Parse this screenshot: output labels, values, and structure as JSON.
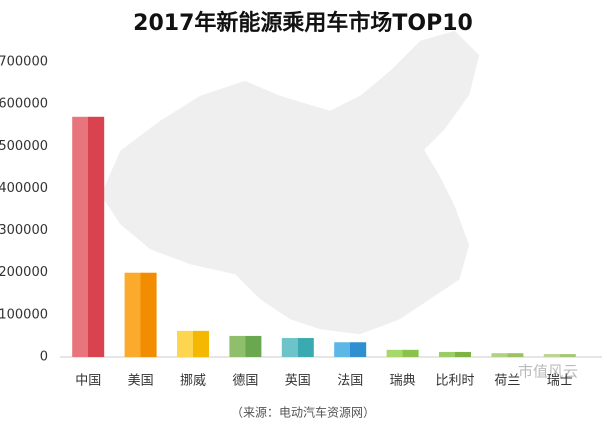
{
  "chart_data": {
    "type": "bar",
    "title": "2017年新能源乘用车市场TOP10",
    "categories": [
      "中国",
      "美国",
      "挪威",
      "德国",
      "英国",
      "法国",
      "瑞典",
      "比利时",
      "荷兰",
      "瑞士"
    ],
    "values": [
      570000,
      200000,
      62000,
      50000,
      45000,
      35000,
      17000,
      12000,
      9000,
      7000
    ],
    "colors": [
      [
        "#e8757d",
        "#d9434f"
      ],
      [
        "#fbab2c",
        "#f28c00"
      ],
      [
        "#fdd54f",
        "#f4b800"
      ],
      [
        "#8fbf6a",
        "#6aa84f"
      ],
      [
        "#6cc4ca",
        "#3aaab1"
      ],
      [
        "#5cb6e6",
        "#2e8fd1"
      ],
      [
        "#a8d86a",
        "#8bc34a"
      ],
      [
        "#9ccc65",
        "#7cb342"
      ],
      [
        "#b0d17f",
        "#9bc163"
      ],
      [
        "#bcd595",
        "#a6c77a"
      ]
    ],
    "ylim": [
      0,
      700000
    ],
    "yticks": [
      0,
      100000,
      200000,
      300000,
      400000,
      500000,
      600000,
      700000
    ],
    "grid": false,
    "source": "（来源：电动汽车资源网）",
    "watermark": "市值风云"
  }
}
